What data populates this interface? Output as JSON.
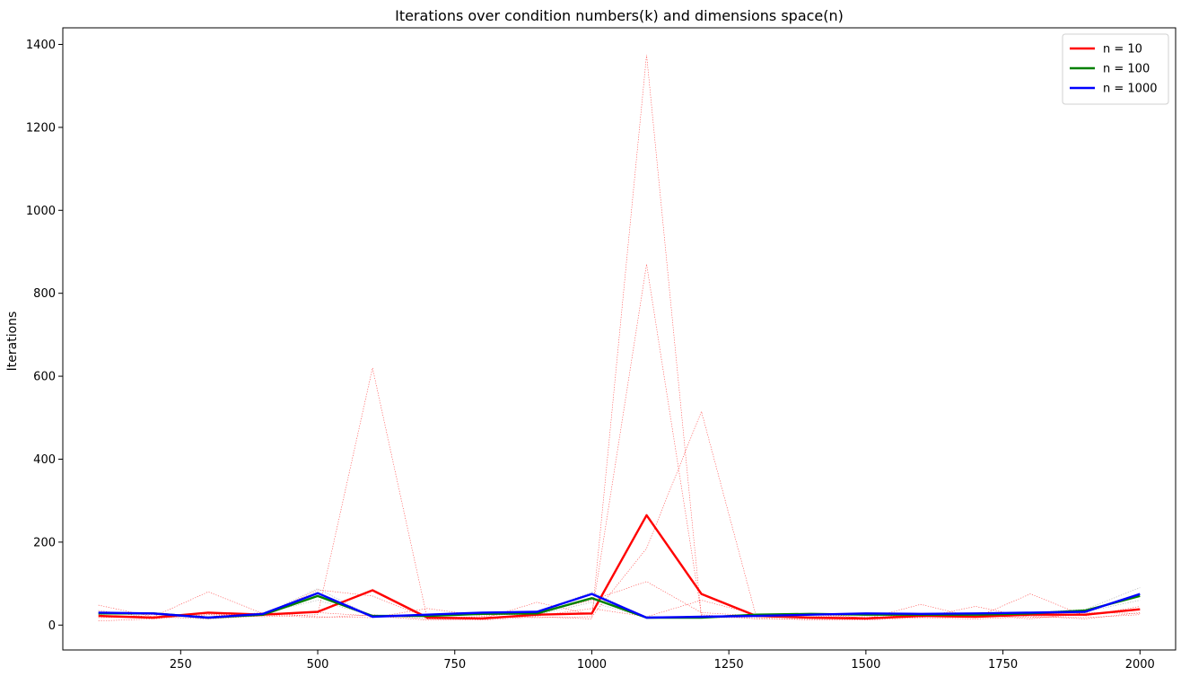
{
  "chart_data": {
    "type": "line",
    "title": "Iterations over condition numbers(k) and dimensions space(n)",
    "xlabel": "",
    "ylabel": "Iterations",
    "xlim": [
      35,
      2065
    ],
    "ylim": [
      -60,
      1440
    ],
    "x_ticks": [
      250,
      500,
      750,
      1000,
      1250,
      1500,
      1750,
      2000
    ],
    "y_ticks": [
      0,
      200,
      400,
      600,
      800,
      1000,
      1200,
      1400
    ],
    "grid": false,
    "legend_position": "top-right",
    "x": [
      100,
      200,
      300,
      400,
      500,
      600,
      700,
      800,
      900,
      1000,
      1100,
      1200,
      1300,
      1400,
      1500,
      1600,
      1700,
      1800,
      1900,
      2000
    ],
    "series": [
      {
        "name": "n = 10",
        "color": "#ff0000",
        "values": [
          22,
          18,
          30,
          25,
          32,
          84,
          18,
          16,
          25,
          28,
          265,
          75,
          22,
          18,
          16,
          22,
          20,
          25,
          25,
          38
        ]
      },
      {
        "name": "n = 100",
        "color": "#008000",
        "values": [
          28,
          28,
          18,
          25,
          70,
          22,
          22,
          27,
          28,
          65,
          18,
          18,
          25,
          27,
          25,
          25,
          25,
          28,
          35,
          70
        ]
      },
      {
        "name": "n = 1000",
        "color": "#0000ff",
        "values": [
          30,
          28,
          18,
          27,
          77,
          20,
          25,
          30,
          32,
          75,
          18,
          20,
          22,
          25,
          28,
          27,
          28,
          30,
          32,
          75
        ]
      }
    ],
    "individual_runs": [
      {
        "color": "#ff0000",
        "values": [
          10,
          15,
          25,
          20,
          25,
          620,
          15,
          12,
          20,
          15,
          1375,
          18,
          18,
          12,
          12,
          18,
          15,
          20,
          18,
          25
        ]
      },
      {
        "color": "#ff0000",
        "values": [
          18,
          20,
          80,
          28,
          30,
          22,
          12,
          15,
          55,
          25,
          870,
          25,
          15,
          15,
          15,
          50,
          18,
          75,
          22,
          45
        ]
      },
      {
        "color": "#ff0000",
        "values": [
          48,
          20,
          15,
          22,
          85,
          70,
          18,
          20,
          18,
          20,
          185,
          515,
          20,
          18,
          20,
          18,
          45,
          18,
          25,
          40
        ]
      },
      {
        "color": "#ff0000",
        "values": [
          28,
          25,
          20,
          30,
          20,
          18,
          40,
          22,
          30,
          60,
          105,
          30,
          22,
          25,
          18,
          25,
          20,
          22,
          15,
          30
        ]
      },
      {
        "color": "#ff0000",
        "values": [
          35,
          18,
          25,
          25,
          18,
          25,
          15,
          18,
          22,
          40,
          20,
          60,
          25,
          20,
          25,
          20,
          25,
          15,
          30,
          28
        ]
      },
      {
        "color": "#808080",
        "values": [
          30,
          28,
          18,
          25,
          88,
          20,
          22,
          28,
          30,
          80,
          18,
          18,
          25,
          28,
          25,
          28,
          25,
          30,
          38,
          90
        ]
      },
      {
        "color": "#808080",
        "values": [
          25,
          30,
          20,
          28,
          60,
          22,
          25,
          25,
          25,
          55,
          18,
          20,
          22,
          25,
          28,
          25,
          28,
          25,
          32,
          60
        ]
      }
    ]
  }
}
